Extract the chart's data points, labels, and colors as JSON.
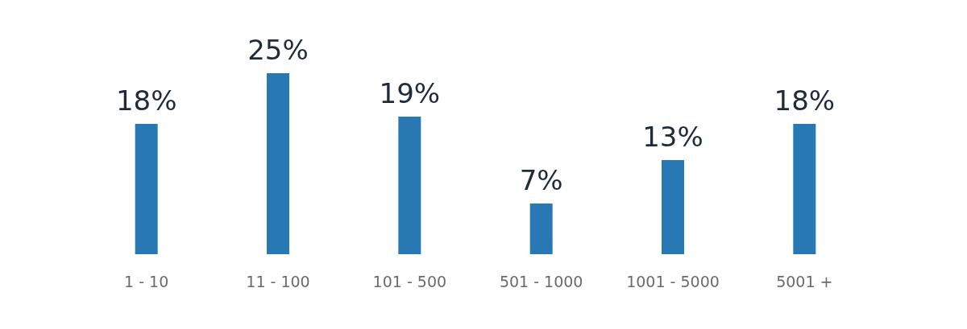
{
  "chart_data": {
    "type": "bar",
    "categories": [
      "1 - 10",
      "11 - 100",
      "101 - 500",
      "501 - 1000",
      "1001 - 5000",
      "5001 +"
    ],
    "values": [
      18,
      25,
      19,
      7,
      13,
      18
    ],
    "value_labels": [
      "18%",
      "25%",
      "19%",
      "7%",
      "13%",
      "18%"
    ],
    "color": "#2878b4"
  }
}
